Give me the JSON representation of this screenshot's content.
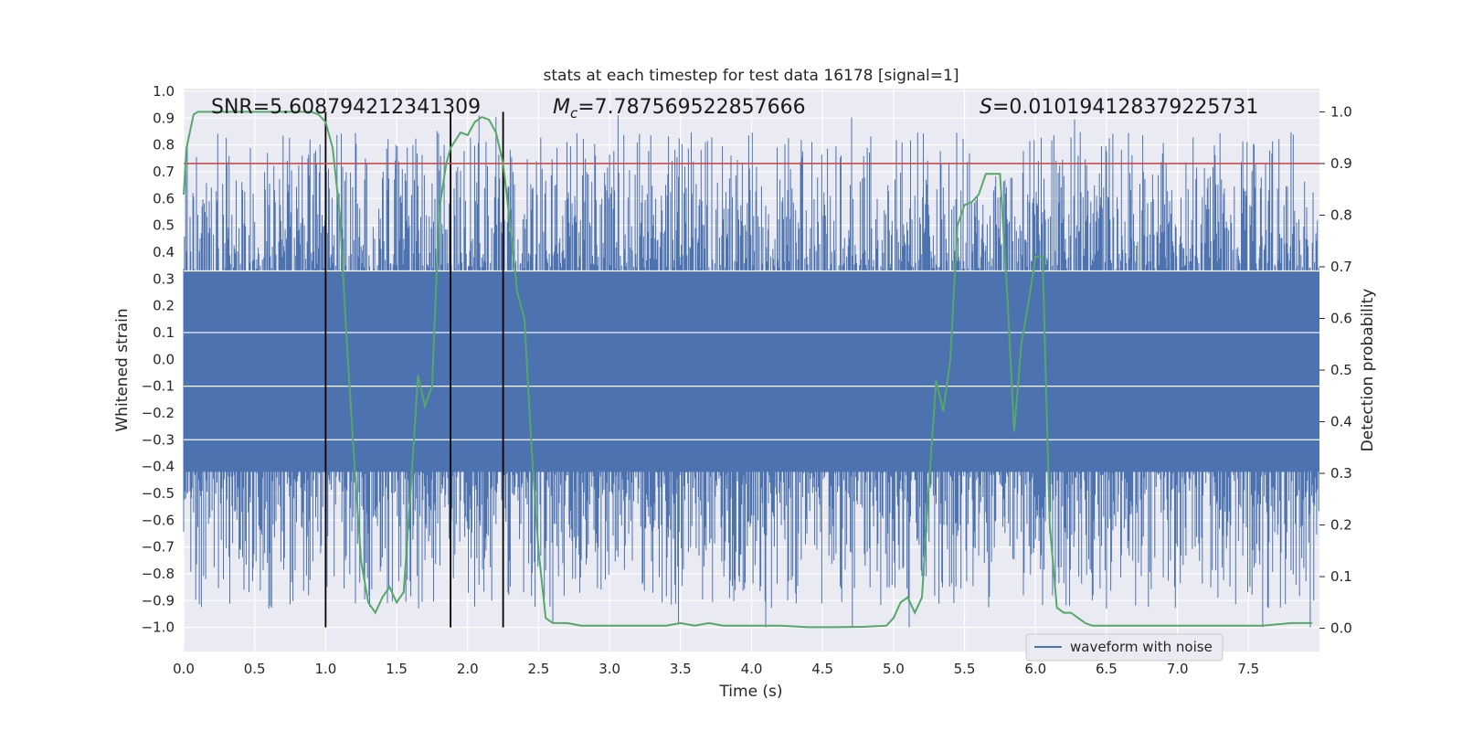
{
  "chart_data": {
    "type": "line",
    "title": "stats at each timestep for test data 16178 [signal=1]",
    "xlabel": "Time (s)",
    "ylabel": "Whitened strain",
    "ylabel_right": "Detection probability",
    "xlim": [
      0,
      8
    ],
    "ylim": [
      -1.09,
      1.01
    ],
    "ylim_right": [
      -0.045,
      1.045
    ],
    "x_ticks": [
      0.0,
      0.5,
      1.0,
      1.5,
      2.0,
      2.5,
      3.0,
      3.5,
      4.0,
      4.5,
      5.0,
      5.5,
      6.0,
      6.5,
      7.0,
      7.5
    ],
    "x_tick_labels": [
      "0.0",
      "0.5",
      "1.0",
      "1.5",
      "2.0",
      "2.5",
      "3.0",
      "3.5",
      "4.0",
      "4.5",
      "5.0",
      "5.5",
      "6.0",
      "6.5",
      "7.0",
      "7.5"
    ],
    "y_ticks": [
      1.0,
      0.9,
      0.8,
      0.7,
      0.6,
      0.5,
      0.4,
      0.3,
      0.2,
      0.1,
      0.0,
      -0.1,
      -0.2,
      -0.3,
      -0.4,
      -0.5,
      -0.6,
      -0.7,
      -0.8,
      -0.9,
      -1.0
    ],
    "y_tick_labels": [
      "1.0",
      "0.9",
      "0.8",
      "0.7",
      "0.6",
      "0.5",
      "0.4",
      "0.3",
      "0.2",
      "0.1",
      "0.0",
      "−0.1",
      "−0.2",
      "−0.3",
      "−0.4",
      "−0.5",
      "−0.6",
      "−0.7",
      "−0.8",
      "−0.9",
      "−1.0"
    ],
    "y_ticks_right": [
      1.0,
      0.9,
      0.8,
      0.7,
      0.6,
      0.5,
      0.4,
      0.3,
      0.2,
      0.1,
      0.0
    ],
    "y_tick_labels_right": [
      "1.0",
      "0.9",
      "0.8",
      "0.7",
      "0.6",
      "0.5",
      "0.4",
      "0.3",
      "0.2",
      "0.1",
      "0.0"
    ],
    "annotations": {
      "snr": "SNR=5.608794212341309",
      "mc_symbol": "M",
      "mc_sub": "c",
      "mc_value": "=7.787569522857666",
      "s_symbol": "S",
      "s_value": "=0.010194128379225731"
    },
    "legend": {
      "label": "waveform with noise",
      "placement": "lower-right"
    },
    "threshold": {
      "value": 0.9,
      "axis": "right",
      "color": "#c44e52"
    },
    "vertical_lines": [
      1.0,
      1.88,
      2.25
    ],
    "waveform": {
      "name": "waveform with noise",
      "color": "#4c72b0",
      "t_start": 0.0,
      "t_end": 8.0,
      "n_samples": 1600,
      "core_band": [
        -0.42,
        0.33
      ],
      "max": 0.91,
      "min": -1.0
    },
    "series": [
      {
        "name": "detection probability",
        "color": "#55a868",
        "axis": "right",
        "x": [
          0.0,
          0.02,
          0.07,
          0.1,
          0.15,
          0.2,
          0.3,
          0.4,
          0.5,
          0.6,
          0.7,
          0.8,
          0.9,
          0.95,
          1.0,
          1.05,
          1.1,
          1.15,
          1.2,
          1.25,
          1.3,
          1.35,
          1.4,
          1.45,
          1.5,
          1.55,
          1.6,
          1.65,
          1.7,
          1.75,
          1.8,
          1.85,
          1.88,
          1.95,
          2.0,
          2.05,
          2.1,
          2.15,
          2.2,
          2.25,
          2.3,
          2.35,
          2.4,
          2.45,
          2.5,
          2.55,
          2.6,
          2.65,
          2.7,
          2.8,
          3.0,
          3.2,
          3.4,
          3.5,
          3.6,
          3.7,
          3.8,
          4.0,
          4.2,
          4.4,
          4.6,
          4.8,
          4.95,
          5.0,
          5.05,
          5.1,
          5.15,
          5.2,
          5.25,
          5.3,
          5.35,
          5.4,
          5.45,
          5.5,
          5.55,
          5.6,
          5.65,
          5.7,
          5.75,
          5.8,
          5.85,
          5.9,
          5.95,
          6.0,
          6.05,
          6.1,
          6.15,
          6.2,
          6.25,
          6.3,
          6.35,
          6.4,
          6.45,
          6.5,
          6.6,
          6.8,
          7.0,
          7.2,
          7.4,
          7.5,
          7.6,
          7.8,
          7.95
        ],
        "values": [
          0.84,
          0.93,
          0.995,
          1.0,
          1.0,
          1.0,
          1.0,
          1.0,
          1.0,
          1.0,
          1.0,
          1.0,
          1.0,
          0.995,
          0.98,
          0.93,
          0.8,
          0.55,
          0.33,
          0.13,
          0.05,
          0.03,
          0.06,
          0.08,
          0.05,
          0.07,
          0.27,
          0.49,
          0.43,
          0.47,
          0.81,
          0.9,
          0.93,
          0.96,
          0.955,
          0.98,
          0.99,
          0.985,
          0.96,
          0.9,
          0.78,
          0.65,
          0.6,
          0.35,
          0.15,
          0.02,
          0.01,
          0.01,
          0.01,
          0.005,
          0.005,
          0.005,
          0.005,
          0.01,
          0.005,
          0.01,
          0.005,
          0.005,
          0.005,
          0.002,
          0.002,
          0.003,
          0.005,
          0.02,
          0.05,
          0.06,
          0.03,
          0.06,
          0.28,
          0.48,
          0.42,
          0.52,
          0.78,
          0.82,
          0.825,
          0.84,
          0.88,
          0.88,
          0.88,
          0.65,
          0.38,
          0.55,
          0.63,
          0.72,
          0.72,
          0.2,
          0.04,
          0.03,
          0.03,
          0.02,
          0.01,
          0.005,
          0.005,
          0.005,
          0.005,
          0.005,
          0.005,
          0.005,
          0.005,
          0.005,
          0.005,
          0.01,
          0.01
        ]
      }
    ]
  }
}
